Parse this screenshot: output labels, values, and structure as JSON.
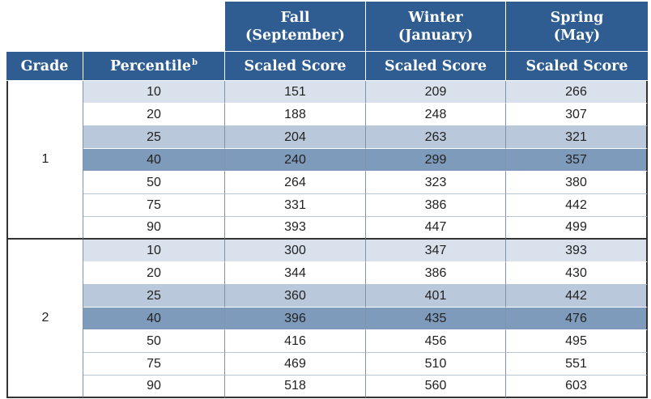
{
  "header": {
    "seasons": [
      {
        "line1": "Fall",
        "line2": "(September)"
      },
      {
        "line1": "Winter",
        "line2": "(January)"
      },
      {
        "line1": "Spring",
        "line2": "(May)"
      }
    ],
    "grade_label": "Grade",
    "percentile_label": "Percentile",
    "percentile_footnote": "b",
    "scaled_score_label": "Scaled Score"
  },
  "colors": {
    "header_blue": "#2f5d92",
    "row_light": "#d8e1ec",
    "row_mid": "#b9c8da",
    "row_dark": "#7f9bbb"
  },
  "grades": [
    {
      "grade": "1",
      "rows": [
        {
          "percentile": "10",
          "fall": "151",
          "winter": "209",
          "spring": "266"
        },
        {
          "percentile": "20",
          "fall": "188",
          "winter": "248",
          "spring": "307"
        },
        {
          "percentile": "25",
          "fall": "204",
          "winter": "263",
          "spring": "321"
        },
        {
          "percentile": "40",
          "fall": "240",
          "winter": "299",
          "spring": "357"
        },
        {
          "percentile": "50",
          "fall": "264",
          "winter": "323",
          "spring": "380"
        },
        {
          "percentile": "75",
          "fall": "331",
          "winter": "386",
          "spring": "442"
        },
        {
          "percentile": "90",
          "fall": "393",
          "winter": "447",
          "spring": "499"
        }
      ]
    },
    {
      "grade": "2",
      "rows": [
        {
          "percentile": "10",
          "fall": "300",
          "winter": "347",
          "spring": "393"
        },
        {
          "percentile": "20",
          "fall": "344",
          "winter": "386",
          "spring": "430"
        },
        {
          "percentile": "25",
          "fall": "360",
          "winter": "401",
          "spring": "442"
        },
        {
          "percentile": "40",
          "fall": "396",
          "winter": "435",
          "spring": "476"
        },
        {
          "percentile": "50",
          "fall": "416",
          "winter": "456",
          "spring": "495"
        },
        {
          "percentile": "75",
          "fall": "469",
          "winter": "510",
          "spring": "551"
        },
        {
          "percentile": "90",
          "fall": "518",
          "winter": "560",
          "spring": "603"
        }
      ]
    }
  ]
}
